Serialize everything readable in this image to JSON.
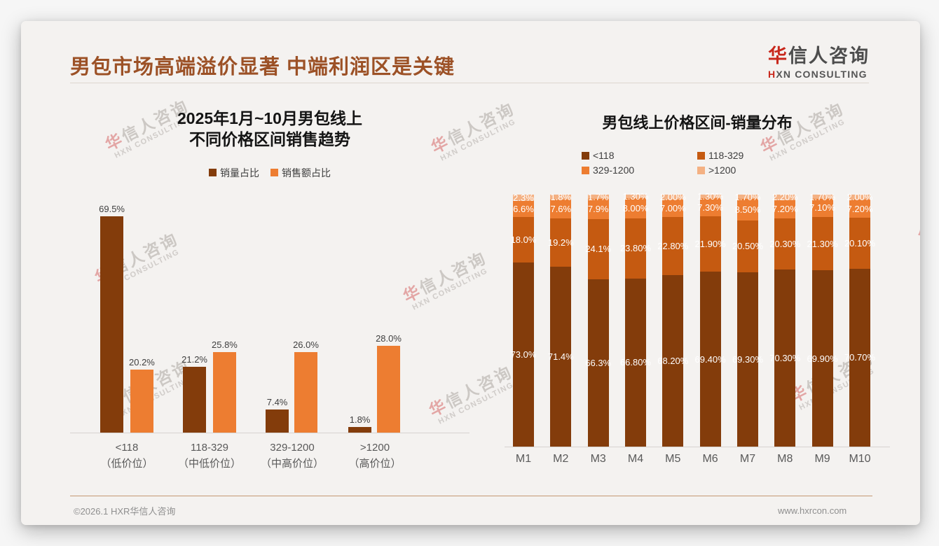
{
  "page": {
    "title": "男包市场高端溢价显著 中端利润区是关键",
    "logo": {
      "brand_accent": "华",
      "brand_rest": "信人咨询",
      "sub_accent": "H",
      "sub_rest": "XN CONSULTING"
    },
    "watermark": {
      "line1_accent": "华",
      "line1_rest": "信人咨询",
      "line2": "HXN CONSULTING"
    },
    "footer": {
      "copyright": "©2026.1 HXR华信人咨询",
      "website": "www.hxrcon.com"
    }
  },
  "colors": {
    "title_brown": "#9c5126",
    "dark_brown": "#833C0B",
    "dark_orange": "#C55A11",
    "orange": "#ED7D31",
    "peach": "#F4B183",
    "axis_gray": "#d6d3d0",
    "label_gray": "#595959"
  },
  "chart_data": [
    {
      "type": "bar",
      "stacked": false,
      "title": "2025年1月~10月男包线上",
      "title_line2": "不同价格区间销售趋势",
      "categories": [
        "<118",
        "118-329",
        "329-1200",
        ">1200"
      ],
      "category_sublabels": [
        "（低价位）",
        "（中低价位）",
        "（中高价位）",
        "（高价位）"
      ],
      "series": [
        {
          "name": "销量占比",
          "color": "#833C0B",
          "values": [
            69.5,
            21.2,
            7.4,
            1.8
          ],
          "labels": [
            "69.5%",
            "21.2%",
            "7.4%",
            "1.8%"
          ]
        },
        {
          "name": "销售额占比",
          "color": "#ED7D31",
          "values": [
            20.2,
            25.8,
            26.0,
            28.0
          ],
          "labels": [
            "20.2%",
            "25.8%",
            "26.0%",
            "28.0%"
          ]
        }
      ],
      "ylim": [
        0,
        74.6
      ],
      "grid": false,
      "legend_position": "top",
      "value_labels": "above-bars"
    },
    {
      "type": "bar",
      "stacked": true,
      "title": "男包线上价格区间-销量分布",
      "categories": [
        "M1",
        "M2",
        "M3",
        "M4",
        "M5",
        "M6",
        "M7",
        "M8",
        "M9",
        "M10"
      ],
      "series": [
        {
          "name": "<118",
          "color": "#833C0B",
          "values": [
            73.0,
            71.4,
            66.3,
            66.8,
            68.2,
            69.4,
            69.3,
            70.3,
            69.9,
            70.7
          ],
          "labels": [
            "73.0%",
            "71.4%",
            "66.3%",
            "66.80%",
            "68.20%",
            "69.40%",
            "69.30%",
            "70.30%",
            "69.90%",
            "70.70%"
          ]
        },
        {
          "name": "118-329",
          "color": "#C55A11",
          "values": [
            18.0,
            19.2,
            24.1,
            23.8,
            22.8,
            21.9,
            20.5,
            20.3,
            21.3,
            20.1
          ],
          "labels": [
            "18.0%",
            "19.2%",
            "24.1%",
            "23.80%",
            "22.80%",
            "21.90%",
            "20.50%",
            "20.30%",
            "21.30%",
            "20.10%"
          ]
        },
        {
          "name": "329-1200",
          "color": "#ED7D31",
          "values": [
            6.6,
            7.6,
            7.9,
            8.0,
            7.0,
            7.3,
            8.5,
            7.2,
            7.1,
            7.2
          ],
          "labels": [
            "6.6%",
            "7.6%",
            "7.9%",
            "8.00%",
            "7.00%",
            "7.30%",
            "8.50%",
            "7.20%",
            "7.10%",
            "7.20%"
          ]
        },
        {
          "name": ">1200",
          "color": "#F4B183",
          "values": [
            2.3,
            1.8,
            1.7,
            1.3,
            2.0,
            1.3,
            1.7,
            2.2,
            1.7,
            2.0
          ],
          "labels": [
            "2.3%",
            "1.8%",
            "1.7%",
            "1.30%",
            "2.00%",
            "1.30%",
            "1.70%",
            "2.20%",
            "1.70%",
            "2.00%"
          ]
        }
      ],
      "ylim": [
        0,
        100
      ],
      "grid": false,
      "legend_position": "top",
      "value_labels": "inside-segments"
    }
  ]
}
